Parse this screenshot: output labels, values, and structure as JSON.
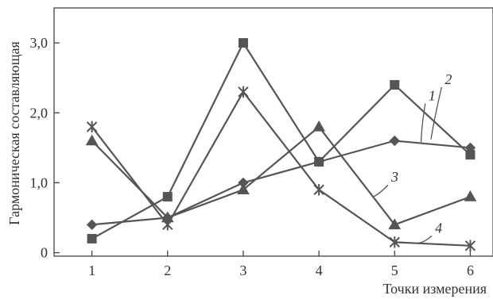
{
  "chart_data": {
    "type": "line",
    "xlabel": "Точки измерения",
    "ylabel": "Гармоническая составляющая",
    "x": [
      1,
      2,
      3,
      4,
      5,
      6
    ],
    "x_tick_labels": [
      "1",
      "2",
      "3",
      "4",
      "5",
      "6"
    ],
    "xlim": [
      0.5,
      6.3
    ],
    "y_ticks": [
      0,
      1,
      2,
      3
    ],
    "y_tick_labels": [
      "0",
      "1,0",
      "2,0",
      "3,0"
    ],
    "ylim": [
      -0.05,
      3.5
    ],
    "grid": false,
    "series": [
      {
        "name": "1",
        "marker": "diamond",
        "values": [
          0.4,
          0.5,
          1.0,
          1.3,
          1.6,
          1.5
        ]
      },
      {
        "name": "2",
        "marker": "square",
        "values": [
          0.2,
          0.8,
          3.0,
          1.3,
          2.4,
          1.4
        ]
      },
      {
        "name": "3",
        "marker": "triangle",
        "values": [
          1.6,
          0.5,
          0.9,
          1.8,
          0.4,
          0.8
        ]
      },
      {
        "name": "4",
        "marker": "star",
        "values": [
          1.8,
          0.4,
          2.3,
          0.9,
          0.15,
          0.1
        ]
      }
    ]
  }
}
